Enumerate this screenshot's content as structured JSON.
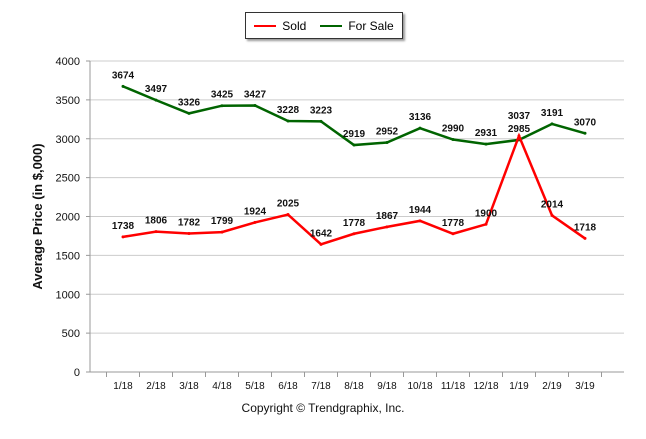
{
  "legend": {
    "sold": "Sold",
    "for_sale": "For Sale"
  },
  "copyright": "Copyright © Trendgraphix, Inc.",
  "chart_data": {
    "type": "line",
    "title": "",
    "xlabel": "",
    "ylabel": "Average Price (in $,000)",
    "ylim": [
      0,
      4000
    ],
    "yticks": [
      0,
      500,
      1000,
      1500,
      2000,
      2500,
      3000,
      3500,
      4000
    ],
    "grid": true,
    "legend_position": "top-center",
    "categories": [
      "1/18",
      "2/18",
      "3/18",
      "4/18",
      "5/18",
      "6/18",
      "7/18",
      "8/18",
      "9/18",
      "10/18",
      "11/18",
      "12/18",
      "1/19",
      "2/19",
      "3/19"
    ],
    "series": [
      {
        "name": "Sold",
        "color": "#ff0000",
        "values": [
          1738,
          1806,
          1782,
          1799,
          1924,
          2025,
          1642,
          1778,
          1867,
          1944,
          1778,
          1900,
          3037,
          2014,
          1718
        ]
      },
      {
        "name": "For Sale",
        "color": "#006400",
        "values": [
          3674,
          3497,
          3326,
          3425,
          3427,
          3228,
          3223,
          2919,
          2952,
          3136,
          2990,
          2931,
          2985,
          3191,
          3070
        ]
      }
    ]
  }
}
